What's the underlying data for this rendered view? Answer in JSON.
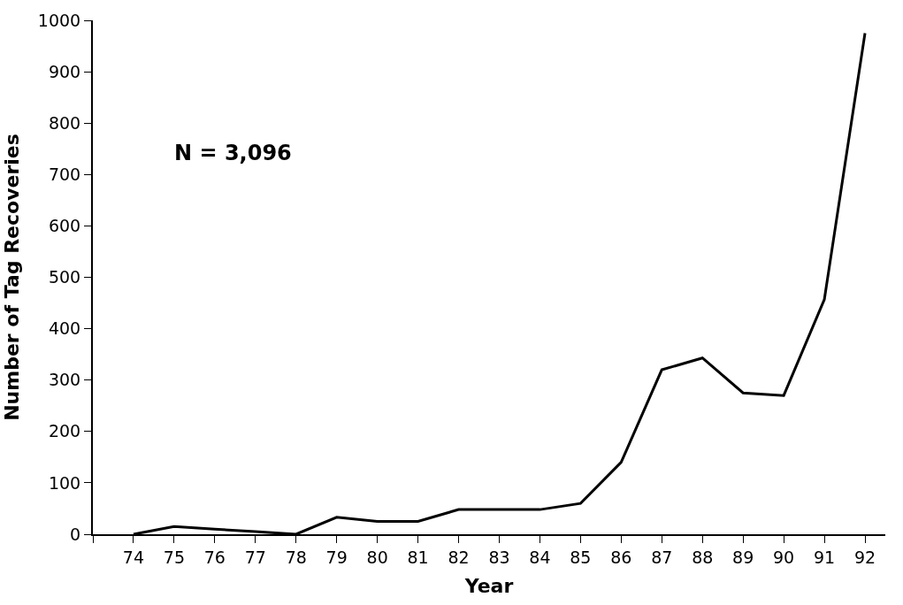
{
  "chart_data": {
    "type": "line",
    "xlabel": "Year",
    "ylabel": "Number of Tag Recoveries",
    "annotations": [
      "N = 3,096"
    ],
    "x": [
      74,
      75,
      76,
      77,
      78,
      79,
      80,
      81,
      82,
      83,
      84,
      85,
      86,
      87,
      88,
      89,
      90,
      91,
      92
    ],
    "series": [
      {
        "color": "#000000",
        "values": [
          0,
          15,
          10,
          5,
          0,
          33,
          25,
          25,
          48,
          48,
          48,
          60,
          140,
          320,
          343,
          275,
          270,
          457,
          975
        ]
      }
    ],
    "xlim": [
      73,
      92.5
    ],
    "xticks": [
      {
        "value": 73,
        "label": null
      },
      74,
      75,
      76,
      77,
      78,
      79,
      80,
      81,
      82,
      83,
      84,
      85,
      86,
      87,
      88,
      89,
      90,
      91,
      92
    ],
    "ylim": [
      0,
      1000
    ],
    "yticks": [
      0,
      100,
      200,
      300,
      400,
      500,
      600,
      700,
      800,
      900,
      1000
    ],
    "legend": false,
    "marker": "none",
    "line_style": "solid"
  }
}
